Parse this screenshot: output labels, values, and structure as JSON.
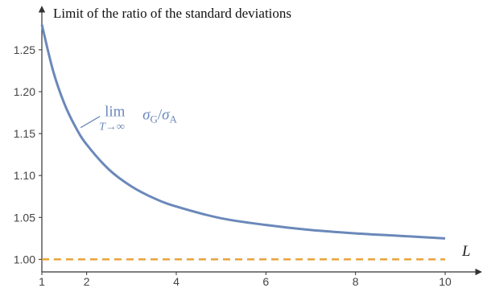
{
  "chart_data": {
    "type": "line",
    "title": "Limit of the ratio of the standard deviations",
    "xlabel": "L",
    "ylabel": "",
    "xlim": [
      1,
      10
    ],
    "ylim": [
      0.985,
      1.295
    ],
    "x_ticks": [
      "1",
      "2",
      "4",
      "6",
      "8",
      "10"
    ],
    "y_ticks": [
      "1.00",
      "1.05",
      "1.10",
      "1.15",
      "1.20",
      "1.25"
    ],
    "series": [
      {
        "name": "lim σG/σA",
        "color": "#6b88ba",
        "style": "solid",
        "x": [
          1,
          1.25,
          1.5,
          1.75,
          2,
          2.5,
          3,
          3.5,
          4,
          5,
          6,
          7,
          8,
          9,
          10
        ],
        "y": [
          1.28,
          1.225,
          1.186,
          1.158,
          1.137,
          1.107,
          1.087,
          1.073,
          1.063,
          1.049,
          1.041,
          1.035,
          1.031,
          1.028,
          1.025
        ]
      },
      {
        "name": "",
        "color": "#e9a23b",
        "style": "dashed",
        "x": [
          1,
          10
        ],
        "y": [
          1.0,
          1.0
        ]
      }
    ],
    "annotation": {
      "lim": "lim",
      "limit_sub": "T→∞",
      "sigma_g": "σ",
      "sub_g": "G",
      "slash": "/",
      "sigma_a": "σ",
      "sub_a": "A",
      "x": 1.9,
      "y": 1.158
    },
    "grid": false,
    "legend": "none"
  }
}
